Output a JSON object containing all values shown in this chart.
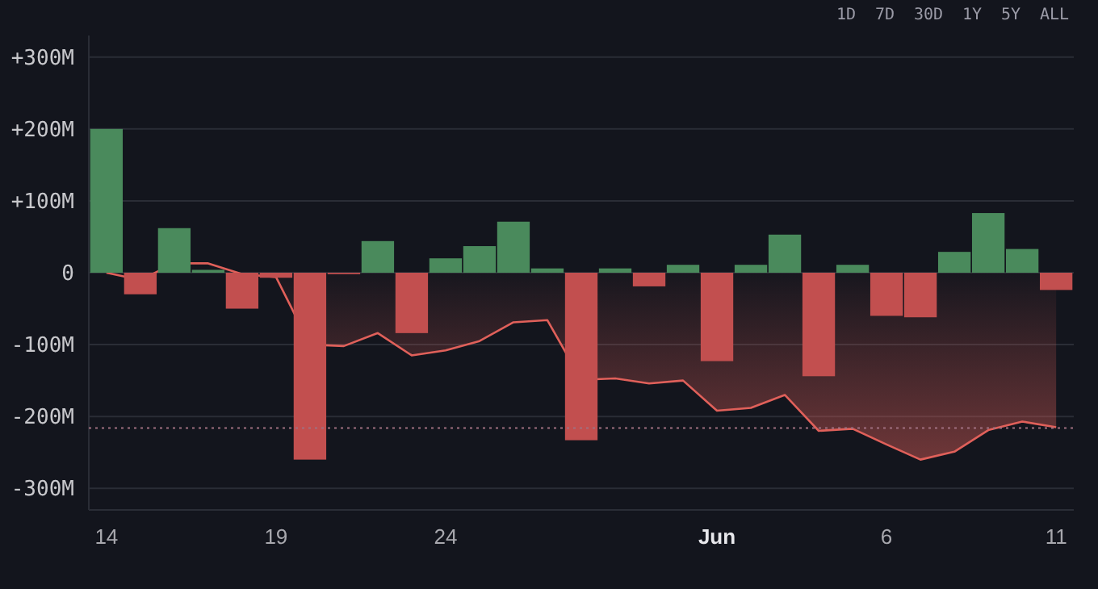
{
  "chart_data": {
    "type": "bar",
    "categories": [
      "14",
      null,
      null,
      null,
      null,
      "19",
      null,
      null,
      null,
      null,
      "24",
      null,
      null,
      null,
      null,
      null,
      null,
      null,
      "Jun",
      null,
      null,
      null,
      null,
      "6",
      null,
      null,
      null,
      null,
      "11"
    ],
    "series": [
      {
        "colors": [
          "#4a8a5c",
          "#c24f4f",
          "#4a8a5c",
          "#4a8a5c",
          "#c24f4f",
          "#c24f4f",
          "#c24f4f",
          "#c24f4f",
          "#4a8a5c",
          "#c24f4f",
          "#4a8a5c",
          "#4a8a5c",
          "#4a8a5c",
          "#4a8a5c",
          "#c24f4f",
          "#4a8a5c",
          "#c24f4f",
          "#4a8a5c",
          "#c24f4f",
          "#4a8a5c",
          "#4a8a5c",
          "#c24f4f",
          "#4a8a5c",
          "#c24f4f",
          "#c24f4f",
          "#4a8a5c",
          "#4a8a5c",
          "#4a8a5c",
          "#c24f4f"
        ],
        "values": [
          200,
          -30,
          62,
          4,
          -50,
          -7,
          -260,
          -2,
          44,
          -84,
          20,
          37,
          71,
          6,
          -233,
          6,
          -19,
          11,
          -123,
          11,
          53,
          -144,
          11,
          -60,
          -62,
          29,
          83,
          33,
          -24
        ]
      },
      {
        "type": "area",
        "color": "#e0605a",
        "values": [
          0,
          -10,
          13,
          13,
          -2,
          -6,
          -100,
          -102,
          -84,
          -115,
          -108,
          -95,
          -69,
          -66,
          -149,
          -147,
          -154,
          -150,
          -192,
          -188,
          -170,
          -220,
          -217,
          -239,
          -260,
          -249,
          -219,
          -207,
          -215
        ]
      }
    ],
    "ylim": [
      -330,
      330
    ],
    "yticks": [
      {
        "value": 300,
        "label": "+300M"
      },
      {
        "value": 200,
        "label": "+200M"
      },
      {
        "value": 100,
        "label": "+100M"
      },
      0,
      {
        "value": -100,
        "label": "-100M"
      },
      {
        "value": -200,
        "label": "-200M"
      },
      {
        "value": -300,
        "label": "-300M"
      }
    ],
    "grid": "y",
    "ref_lines": [
      {
        "axis": "y",
        "value": -216,
        "color": "#a07080",
        "line_style": "dotted"
      }
    ],
    "annotations": [
      "1D",
      "7D",
      "30D",
      "1Y",
      "5Y",
      "ALL"
    ]
  }
}
